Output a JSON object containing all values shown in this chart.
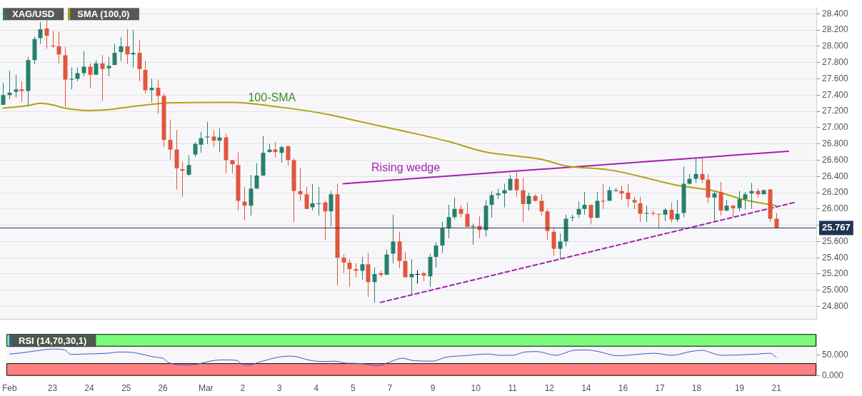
{
  "chart_data": [
    {
      "type": "candlestick",
      "categories": [
        null,
        null,
        null,
        null,
        null,
        null,
        null,
        null,
        null,
        null,
        null,
        null,
        null,
        null,
        null,
        null,
        null,
        null,
        null,
        null,
        null,
        null,
        null,
        null,
        null,
        null,
        null,
        null,
        null,
        null,
        null,
        null,
        null,
        null,
        null,
        null,
        null,
        null,
        null,
        null,
        null,
        null,
        null,
        null,
        null,
        null,
        null,
        null,
        null,
        null,
        null,
        null,
        null,
        null,
        null,
        null,
        null,
        null,
        null,
        null,
        null,
        null,
        null,
        null,
        null,
        null,
        null,
        null,
        null,
        null,
        null,
        null,
        null,
        null,
        null,
        null,
        null,
        null,
        null,
        null,
        null,
        null,
        null,
        null,
        null,
        null,
        null,
        null,
        null,
        null,
        null,
        null,
        null,
        null,
        null,
        null,
        null,
        null,
        null,
        null,
        null,
        null,
        null,
        null,
        null,
        null,
        null,
        null,
        null,
        null,
        null,
        null,
        null,
        null,
        null,
        null,
        null,
        null,
        null,
        null,
        null,
        null,
        null,
        null,
        null,
        null,
        null,
        null,
        null,
        null,
        null,
        null
      ],
      "series": [
        {
          "name": "XAG/USD",
          "type": "candlestick",
          "color": "#2a7f78",
          "ohlc": [
            [
              27.28,
              27.55,
              27.28,
              27.4
            ],
            [
              27.4,
              27.7,
              27.35,
              27.43
            ],
            [
              27.44,
              27.65,
              27.37,
              27.47
            ],
            [
              27.47,
              27.57,
              27.32,
              27.45
            ],
            [
              27.45,
              27.87,
              27.27,
              27.83
            ],
            [
              27.83,
              28.12,
              27.78,
              28.09
            ],
            [
              28.1,
              28.3,
              28.03,
              28.21
            ],
            [
              28.22,
              28.32,
              27.97,
              28.13
            ],
            [
              28.01,
              28.19,
              27.98,
              28.0
            ],
            [
              28.0,
              28.18,
              27.79,
              27.9
            ],
            [
              27.89,
              27.99,
              27.26,
              27.59
            ],
            [
              27.59,
              27.74,
              27.47,
              27.6
            ],
            [
              27.6,
              27.74,
              27.57,
              27.67
            ],
            [
              27.67,
              27.94,
              27.63,
              27.75
            ],
            [
              27.75,
              27.79,
              27.48,
              27.65
            ],
            [
              27.65,
              27.83,
              27.65,
              27.79
            ],
            [
              27.79,
              27.89,
              27.33,
              27.72
            ],
            [
              27.73,
              27.87,
              27.63,
              27.76
            ],
            [
              27.77,
              28.03,
              27.77,
              27.92
            ],
            [
              27.93,
              28.11,
              27.82,
              28.0
            ],
            [
              28.0,
              28.21,
              27.78,
              27.9
            ],
            [
              27.9,
              28.2,
              27.74,
              27.92
            ],
            [
              27.92,
              28.08,
              27.57,
              27.72
            ],
            [
              27.71,
              27.82,
              27.42,
              27.46
            ],
            [
              27.46,
              27.6,
              27.31,
              27.49
            ],
            [
              27.49,
              27.59,
              27.17,
              27.39
            ],
            [
              27.39,
              27.42,
              26.76,
              26.85
            ],
            [
              26.85,
              27.1,
              26.61,
              26.73
            ],
            [
              26.73,
              26.97,
              26.24,
              26.5
            ],
            [
              26.49,
              26.58,
              26.15,
              26.47
            ],
            [
              26.42,
              26.66,
              26.41,
              26.54
            ],
            [
              26.67,
              26.82,
              26.64,
              26.8
            ],
            [
              26.79,
              26.95,
              26.69,
              26.87
            ],
            [
              26.88,
              27.07,
              26.8,
              26.89
            ],
            [
              26.89,
              26.97,
              26.76,
              26.84
            ],
            [
              26.84,
              26.99,
              26.7,
              26.88
            ],
            [
              26.88,
              26.93,
              26.44,
              26.6
            ],
            [
              26.6,
              26.6,
              26.44,
              26.55
            ],
            [
              26.54,
              26.7,
              25.98,
              26.1
            ],
            [
              26.09,
              26.27,
              25.86,
              26.04
            ],
            [
              26.04,
              26.42,
              25.92,
              26.25
            ],
            [
              26.25,
              26.56,
              26.25,
              26.41
            ],
            [
              26.41,
              26.9,
              26.41,
              26.69
            ],
            [
              26.7,
              26.8,
              26.69,
              26.73
            ],
            [
              26.73,
              26.82,
              26.63,
              26.7
            ],
            [
              26.69,
              26.78,
              26.57,
              26.76
            ],
            [
              26.77,
              26.78,
              26.53,
              26.6
            ],
            [
              26.6,
              26.62,
              25.84,
              26.22
            ],
            [
              26.22,
              26.5,
              26.1,
              26.18
            ],
            [
              26.18,
              26.27,
              26.0,
              26.0
            ],
            [
              26.02,
              26.31,
              25.98,
              26.07
            ],
            [
              26.06,
              26.27,
              25.92,
              26.07
            ],
            [
              26.08,
              26.1,
              25.62,
              25.97
            ],
            [
              25.97,
              26.22,
              25.79,
              26.18
            ],
            [
              26.18,
              26.31,
              25.06,
              25.4
            ],
            [
              25.4,
              25.44,
              25.21,
              25.34
            ],
            [
              25.34,
              25.38,
              25.04,
              25.26
            ],
            [
              25.26,
              25.33,
              25.16,
              25.24
            ],
            [
              25.24,
              25.41,
              25.13,
              25.32
            ],
            [
              25.32,
              25.46,
              24.92,
              25.1
            ],
            [
              25.1,
              25.28,
              24.85,
              25.2
            ],
            [
              25.21,
              25.24,
              25.16,
              25.19
            ],
            [
              25.19,
              25.5,
              25.19,
              25.44
            ],
            [
              25.45,
              25.93,
              25.33,
              25.6
            ],
            [
              25.6,
              25.72,
              25.27,
              25.36
            ],
            [
              25.36,
              25.47,
              25.16,
              25.16
            ],
            [
              25.16,
              25.38,
              24.95,
              25.2
            ],
            [
              25.2,
              25.25,
              25.08,
              25.2
            ],
            [
              25.21,
              25.23,
              25.11,
              25.18
            ],
            [
              25.17,
              25.45,
              25.04,
              25.41
            ],
            [
              25.41,
              25.59,
              25.28,
              25.55
            ],
            [
              25.55,
              25.84,
              25.46,
              25.76
            ],
            [
              25.76,
              26.05,
              25.64,
              25.9
            ],
            [
              25.9,
              26.14,
              25.87,
              26.0
            ],
            [
              26.0,
              26.05,
              25.89,
              25.94
            ],
            [
              25.94,
              26.08,
              25.78,
              25.78
            ],
            [
              25.78,
              25.82,
              25.56,
              25.79
            ],
            [
              25.79,
              25.91,
              25.64,
              25.74
            ],
            [
              25.74,
              26.11,
              25.66,
              26.04
            ],
            [
              26.05,
              26.22,
              25.89,
              26.17
            ],
            [
              26.17,
              26.25,
              26.12,
              26.19
            ],
            [
              26.19,
              26.31,
              26.02,
              26.23
            ],
            [
              26.23,
              26.42,
              26.23,
              26.37
            ],
            [
              26.37,
              26.45,
              26.15,
              26.23
            ],
            [
              26.23,
              26.38,
              25.84,
              26.06
            ],
            [
              26.06,
              26.2,
              25.98,
              26.16
            ],
            [
              26.16,
              26.18,
              26.09,
              26.1
            ],
            [
              26.1,
              26.18,
              25.92,
              25.97
            ],
            [
              25.97,
              26.0,
              25.62,
              25.73
            ],
            [
              25.72,
              25.77,
              25.42,
              25.51
            ],
            [
              25.51,
              25.7,
              25.39,
              25.6
            ],
            [
              25.6,
              25.93,
              25.54,
              25.88
            ],
            [
              25.89,
              25.93,
              25.85,
              25.9
            ],
            [
              25.93,
              26.09,
              25.89,
              26.0
            ],
            [
              26.0,
              26.21,
              25.93,
              26.05
            ],
            [
              26.05,
              26.05,
              25.81,
              25.89
            ],
            [
              25.89,
              26.21,
              25.89,
              26.1
            ],
            [
              26.1,
              26.31,
              26.0,
              26.09
            ],
            [
              26.1,
              26.27,
              26.1,
              26.23
            ],
            [
              26.22,
              26.26,
              26.21,
              26.23
            ],
            [
              26.22,
              26.29,
              26.11,
              26.19
            ],
            [
              26.2,
              26.31,
              26.02,
              26.12
            ],
            [
              26.11,
              26.15,
              26.0,
              26.08
            ],
            [
              26.07,
              26.15,
              25.84,
              25.94
            ],
            [
              25.94,
              26.04,
              25.84,
              25.95
            ],
            [
              25.95,
              25.98,
              25.92,
              25.94
            ],
            [
              25.94,
              25.94,
              25.76,
              25.93
            ],
            [
              25.93,
              26.01,
              25.85,
              25.99
            ],
            [
              25.99,
              26.08,
              25.83,
              25.87
            ],
            [
              25.87,
              26.11,
              25.84,
              25.94
            ],
            [
              25.95,
              26.52,
              25.9,
              26.31
            ],
            [
              26.31,
              26.43,
              26.3,
              26.37
            ],
            [
              26.37,
              26.63,
              26.32,
              26.43
            ],
            [
              26.43,
              26.63,
              26.32,
              26.36
            ],
            [
              26.36,
              26.43,
              26.07,
              26.14
            ],
            [
              26.14,
              26.22,
              25.85,
              26.19
            ],
            [
              26.21,
              26.33,
              25.92,
              25.98
            ],
            [
              25.98,
              26.11,
              25.97,
              26.04
            ],
            [
              26.04,
              26.05,
              25.9,
              26.01
            ],
            [
              26.01,
              26.22,
              25.97,
              26.12
            ],
            [
              26.12,
              26.21,
              25.99,
              26.18
            ],
            [
              26.19,
              26.32,
              26.0,
              26.22
            ],
            [
              26.22,
              26.25,
              26.14,
              26.18
            ],
            [
              26.18,
              26.24,
              26.18,
              26.23
            ],
            [
              26.24,
              26.24,
              25.84,
              25.88
            ],
            [
              25.88,
              25.95,
              25.76,
              25.77
            ],
            null,
            null,
            null,
            null,
            null,
            null
          ],
          "colors": [
            "#26806a",
            "#26806a",
            "#26806a",
            "#e0563f",
            "#26806a",
            "#26806a",
            "#26806a",
            "#e0563f",
            "#e0563f",
            "#e0563f",
            "#e0563f",
            "#26806a",
            "#26806a",
            "#26806a",
            "#e0563f",
            "#26806a",
            "#e0563f",
            "#26806a",
            "#26806a",
            "#26806a",
            "#e0563f",
            "#26806a",
            "#e0563f",
            "#e0563f",
            "#26806a",
            "#e0563f",
            "#e0563f",
            "#e0563f",
            "#e0563f",
            "#e0563f",
            "#26806a",
            "#26806a",
            "#26806a",
            "#26806a",
            "#e0563f",
            "#26806a",
            "#e0563f",
            "#e0563f",
            "#e0563f",
            "#e0563f",
            "#26806a",
            "#26806a",
            "#26806a",
            "#26806a",
            "#e0563f",
            "#26806a",
            "#e0563f",
            "#e0563f",
            "#e0563f",
            "#e0563f",
            "#26806a",
            "#26806a",
            "#e0563f",
            "#26806a",
            "#e0563f",
            "#e0563f",
            "#e0563f",
            "#e0563f",
            "#26806a",
            "#e0563f",
            "#26806a",
            "#e0563f",
            "#26806a",
            "#26806a",
            "#e0563f",
            "#e0563f",
            "#26806a",
            "#111111",
            "#e0563f",
            "#26806a",
            "#26806a",
            "#26806a",
            "#26806a",
            "#26806a",
            "#e0563f",
            "#e0563f",
            "#26806a",
            "#e0563f",
            "#26806a",
            "#26806a",
            "#26806a",
            "#26806a",
            "#26806a",
            "#e0563f",
            "#e0563f",
            "#26806a",
            "#e0563f",
            "#e0563f",
            "#e0563f",
            "#e0563f",
            "#26806a",
            "#26806a",
            "#26806a",
            "#26806a",
            "#26806a",
            "#e0563f",
            "#26806a",
            "#e0563f",
            "#26806a",
            "#26806a",
            "#e0563f",
            "#e0563f",
            "#e0563f",
            "#e0563f",
            "#26806a",
            "#e0563f",
            "#e0563f",
            "#26806a",
            "#e0563f",
            "#26806a",
            "#26806a",
            "#26806a",
            "#26806a",
            "#e0563f",
            "#e0563f",
            "#26806a",
            "#e0563f",
            "#26806a",
            "#e0563f",
            "#26806a",
            "#26806a",
            "#26806a",
            "#e0563f",
            "#26806a",
            "#e0563f",
            "#e0563f",
            null,
            null,
            null,
            null,
            null,
            null
          ]
        },
        {
          "name": "SMA (100,0)",
          "type": "line",
          "color": "#b3a30e",
          "values": [
            27.24,
            null,
            null,
            null,
            27.27,
            null,
            27.3,
            null,
            27.28,
            null,
            27.24,
            null,
            null,
            null,
            27.21,
            null,
            null,
            27.22,
            null,
            null,
            null,
            null,
            27.27,
            null,
            null,
            null,
            27.3,
            null,
            null,
            null,
            null,
            null,
            null,
            null,
            27.31,
            null,
            null,
            27.31,
            null,
            null,
            null,
            null,
            null,
            null,
            null,
            27.25,
            null,
            null,
            null,
            null,
            null,
            null,
            27.17,
            null,
            null,
            null,
            null,
            null,
            27.07,
            null,
            null,
            null,
            null,
            null,
            26.97,
            null,
            null,
            null,
            null,
            null,
            null,
            null,
            26.83,
            null,
            null,
            null,
            null,
            null,
            26.7,
            null,
            null,
            null,
            null,
            26.65,
            null,
            null,
            null,
            26.61,
            null,
            null,
            null,
            26.53,
            null,
            null,
            null,
            null,
            null,
            null,
            26.48,
            null,
            null,
            null,
            null,
            26.4,
            null,
            null,
            null,
            null,
            null,
            26.29,
            null,
            null,
            null,
            null,
            null,
            26.22,
            null,
            null,
            null,
            null,
            26.11,
            null,
            null,
            null,
            null,
            26.04,
            null,
            null,
            null,
            null,
            null,
            null
          ]
        },
        {
          "type": "line",
          "color": "#a51fb0",
          "values": [
            null,
            null,
            null,
            null,
            null,
            null,
            null,
            null,
            null,
            null,
            null,
            null,
            null,
            null,
            null,
            null,
            null,
            null,
            null,
            null,
            null,
            null,
            null,
            null,
            null,
            null,
            null,
            null,
            null,
            null,
            null,
            null,
            null,
            null,
            null,
            null,
            null,
            null,
            null,
            null,
            null,
            null,
            null,
            null,
            null,
            null,
            null,
            null,
            null,
            null,
            null,
            null,
            null,
            null,
            null,
            26.31,
            null,
            null,
            null,
            null,
            null,
            null,
            null,
            null,
            null,
            null,
            null,
            null,
            null,
            null,
            null,
            null,
            null,
            null,
            null,
            null,
            null,
            null,
            null,
            null,
            null,
            null,
            null,
            null,
            null,
            null,
            null,
            null,
            null,
            null,
            null,
            null,
            null,
            null,
            null,
            null,
            null,
            null,
            null,
            null,
            null,
            null,
            null,
            null,
            null,
            null,
            null,
            null,
            null,
            null,
            null,
            null,
            null,
            null,
            null,
            null,
            null,
            null,
            null,
            null,
            null,
            null,
            null,
            null,
            null,
            null,
            null,
            26.71,
            null,
            null,
            null,
            null
          ]
        },
        {
          "type": "line",
          "color": "#a51fb0",
          "line_style": "dashed",
          "values": [
            null,
            null,
            null,
            null,
            null,
            null,
            null,
            null,
            null,
            null,
            null,
            null,
            null,
            null,
            null,
            null,
            null,
            null,
            null,
            null,
            null,
            null,
            null,
            null,
            null,
            null,
            null,
            null,
            null,
            null,
            null,
            null,
            null,
            null,
            null,
            null,
            null,
            null,
            null,
            null,
            null,
            null,
            null,
            null,
            null,
            null,
            null,
            null,
            null,
            null,
            null,
            null,
            null,
            null,
            null,
            null,
            null,
            null,
            null,
            null,
            null,
            24.85,
            null,
            null,
            null,
            null,
            null,
            null,
            null,
            null,
            null,
            null,
            null,
            null,
            null,
            null,
            null,
            null,
            null,
            null,
            null,
            null,
            null,
            null,
            null,
            null,
            null,
            null,
            null,
            null,
            null,
            null,
            null,
            null,
            null,
            null,
            null,
            null,
            null,
            null,
            null,
            null,
            null,
            null,
            null,
            null,
            null,
            null,
            null,
            null,
            null,
            null,
            null,
            null,
            null,
            null,
            null,
            null,
            null,
            null,
            null,
            null,
            null,
            null,
            null,
            null,
            null,
            null,
            26.08,
            null,
            null,
            null
          ]
        }
      ],
      "ylim": [
        24.64,
        28.48
      ],
      "yticks": [
        {
          "value": 24.8,
          "label": "24.800"
        },
        {
          "value": 25,
          "label": "25.000"
        },
        {
          "value": 25.2,
          "label": "25.200"
        },
        {
          "value": 25.4,
          "label": "25.400"
        },
        {
          "value": 25.6,
          "label": "25.600"
        },
        {
          "value": 25.8,
          "label": null
        },
        {
          "value": 26,
          "label": "26.000"
        },
        {
          "value": 26.2,
          "label": "26.200"
        },
        {
          "value": 26.4,
          "label": "26.400"
        },
        {
          "value": 26.6,
          "label": "26.600"
        },
        {
          "value": 26.8,
          "label": "26.800"
        },
        {
          "value": 27,
          "label": "27.000"
        },
        {
          "value": 27.2,
          "label": "27.200"
        },
        {
          "value": 27.4,
          "label": "27.400"
        },
        {
          "value": 27.6,
          "label": "27.600"
        },
        {
          "value": 27.8,
          "label": "27.800"
        },
        {
          "value": 28,
          "label": "28.000"
        },
        {
          "value": 28.2,
          "label": "28.200"
        },
        {
          "value": 28.4,
          "label": "28.400"
        }
      ],
      "ref_lines": [
        {
          "axis": "y",
          "value": 25.767,
          "label": "25.767",
          "color": "#1e3456"
        }
      ],
      "annotations": [
        "100-SMA",
        "Rising wedge"
      ],
      "tick_labels": "y",
      "grid": "y",
      "legend": "top left"
    },
    {
      "type": "line",
      "categories": [
        "Feb",
        null,
        null,
        null,
        null,
        null,
        null,
        "23",
        null,
        null,
        null,
        null,
        null,
        "24",
        null,
        null,
        null,
        null,
        null,
        "25",
        null,
        null,
        null,
        null,
        null,
        "26",
        null,
        null,
        null,
        null,
        null,
        null,
        "Mar",
        null,
        null,
        null,
        null,
        null,
        "2",
        null,
        null,
        null,
        null,
        null,
        "3",
        null,
        null,
        null,
        null,
        null,
        "4",
        null,
        null,
        null,
        null,
        null,
        "5",
        null,
        null,
        null,
        null,
        null,
        "7",
        null,
        null,
        null,
        null,
        null,
        null,
        "9",
        null,
        null,
        null,
        null,
        null,
        null,
        "10",
        null,
        null,
        null,
        null,
        null,
        "11",
        null,
        null,
        null,
        null,
        null,
        "12",
        null,
        null,
        null,
        null,
        null,
        "14",
        null,
        null,
        null,
        null,
        null,
        "16",
        null,
        null,
        null,
        null,
        null,
        "17",
        null,
        null,
        null,
        null,
        null,
        "18",
        null,
        null,
        null,
        null,
        null,
        null,
        "19",
        null,
        null,
        null,
        null,
        null,
        "21",
        null,
        null,
        null,
        null,
        null,
        null
      ],
      "series": [
        {
          "name": "RSI (14,70,30,1)",
          "color": "#3a56d0",
          "values": [
            52,
            null,
            55,
            null,
            59,
            null,
            null,
            64,
            null,
            62,
            51,
            null,
            52,
            null,
            null,
            null,
            54,
            null,
            57,
            null,
            56,
            null,
            50,
            null,
            44,
            42,
            31,
            null,
            null,
            26,
            null,
            29,
            null,
            36,
            null,
            38,
            null,
            37,
            27,
            26,
            null,
            34,
            null,
            null,
            45,
            null,
            47,
            null,
            null,
            37,
            null,
            34,
            null,
            35,
            null,
            30,
            30,
            null,
            28,
            null,
            24,
            null,
            33,
            null,
            42,
            null,
            36,
            null,
            null,
            35,
            null,
            44,
            null,
            null,
            48,
            null,
            null,
            null,
            52,
            null,
            49,
            null,
            49,
            null,
            57,
            null,
            58,
            null,
            null,
            49,
            null,
            null,
            61,
            null,
            62,
            null,
            58,
            null,
            null,
            48,
            null,
            null,
            null,
            52,
            null,
            54,
            null,
            null,
            49,
            null,
            null,
            58,
            null,
            61,
            57,
            null,
            49,
            null,
            null,
            50,
            null,
            null,
            52,
            null,
            54,
            44,
            null,
            null,
            null,
            null,
            null,
            null
          ]
        }
      ],
      "ylim": [
        0,
        100
      ],
      "yticks": [
        {
          "value": 0,
          "label": "0.000"
        },
        {
          "value": 50,
          "label": "50.000"
        }
      ],
      "bands": [
        {
          "axis": "y",
          "from": 70,
          "to": 100,
          "color": "#7cfa7c"
        },
        {
          "axis": "y",
          "from": 0,
          "to": 30,
          "color": "#ff8080"
        }
      ],
      "legend": "top left"
    }
  ]
}
